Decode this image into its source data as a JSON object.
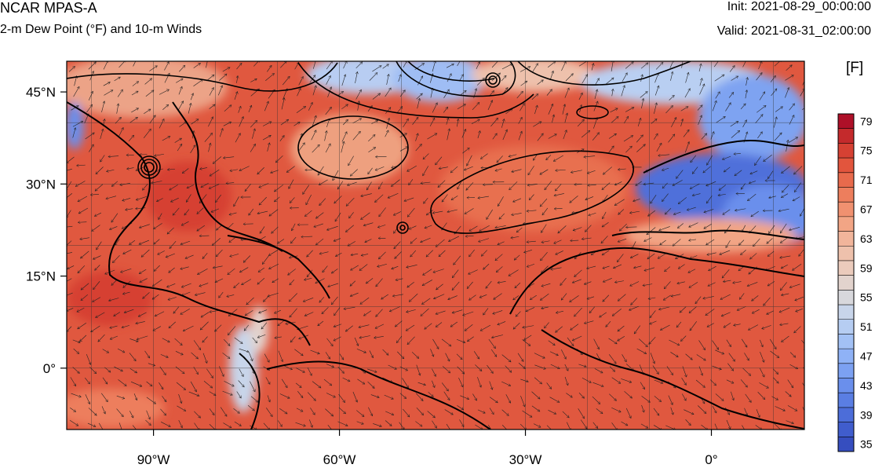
{
  "header": {
    "model": "NCAR MPAS-A",
    "field": "2-m Dew Point (°F) and 10-m Winds",
    "init": "Init: 2021-08-29_00:00:00",
    "valid": "Valid: 2021-08-31_02:00:00"
  },
  "map": {
    "lon_range": [
      -104,
      15
    ],
    "lat_range": [
      -10,
      50
    ],
    "lon_ticks": [
      {
        "value": -90,
        "label": "90°W"
      },
      {
        "value": -60,
        "label": "60°W"
      },
      {
        "value": -30,
        "label": "30°W"
      },
      {
        "value": 0,
        "label": "0°"
      }
    ],
    "lat_ticks": [
      {
        "value": 45,
        "label": "45°N"
      },
      {
        "value": 30,
        "label": "30°N"
      },
      {
        "value": 15,
        "label": "15°N"
      },
      {
        "value": 0,
        "label": "0°"
      }
    ],
    "grid": true,
    "grid_spacing_deg": 10,
    "colors": {
      "ocean_warm": "#e0583f",
      "land_warm": "#e7604a",
      "cool": "#4d72d9",
      "mild": "#eec1ac"
    }
  },
  "colorbar": {
    "unit": "[F]",
    "min": 35,
    "max": 81,
    "step": 2,
    "labels": [
      "79",
      "75",
      "71",
      "67",
      "63",
      "59",
      "55",
      "51",
      "47",
      "43",
      "39",
      "35"
    ],
    "colors": [
      "#ae1028",
      "#c42a2c",
      "#d64133",
      "#e2553d",
      "#e86a4c",
      "#ed7e5d",
      "#f09170",
      "#f2a585",
      "#f1b59b",
      "#eec1ac",
      "#ebcbbc",
      "#e2d3cd",
      "#d8d8dc",
      "#c8d5ea",
      "#b6cdf2",
      "#a3c1f5",
      "#8fb2f6",
      "#7ca1f2",
      "#6a8fec",
      "#5a7ee3",
      "#4c6dd9",
      "#405dcd",
      "#364ebf"
    ]
  }
}
